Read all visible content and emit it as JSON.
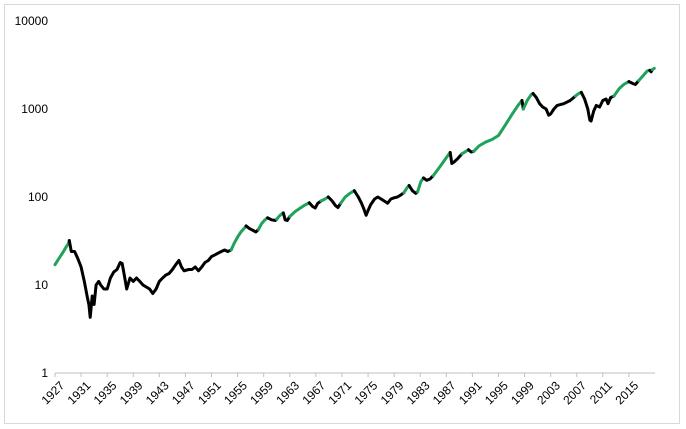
{
  "colors": {
    "bull": "#1fa25a",
    "other": "#000000",
    "axis": "#bfbfbf",
    "frame": "#d9d9d9"
  },
  "chart_data": {
    "type": "line",
    "title": "",
    "xlabel": "",
    "ylabel": "",
    "yscale": "log",
    "ylim": [
      1,
      10000
    ],
    "xlim": [
      1927,
      2019
    ],
    "grid": false,
    "legend": "none",
    "x_tick_labels": [
      "1927",
      "1931",
      "1935",
      "1939",
      "1943",
      "1947",
      "1951",
      "1955",
      "1959",
      "1963",
      "1967",
      "1971",
      "1975",
      "1979",
      "1983",
      "1987",
      "1991",
      "1995",
      "1999",
      "2003",
      "2007",
      "2011",
      "2015"
    ],
    "y_tick_labels": [
      "1",
      "10",
      "100",
      "1000",
      "10000"
    ],
    "series": [
      {
        "style": "green",
        "points": [
          [
            1927.0,
            17
          ],
          [
            1927.6,
            20
          ],
          [
            1928.3,
            24
          ],
          [
            1928.7,
            27
          ],
          [
            1929.0,
            29
          ],
          [
            1929.2,
            32
          ]
        ]
      },
      {
        "style": "black",
        "points": [
          [
            1929.2,
            32
          ],
          [
            1929.5,
            24
          ],
          [
            1930.0,
            24
          ],
          [
            1930.5,
            20
          ],
          [
            1931.0,
            16
          ],
          [
            1931.5,
            11
          ],
          [
            1932.0,
            7
          ],
          [
            1932.2,
            6
          ],
          [
            1932.4,
            4.3
          ],
          [
            1932.7,
            7.5
          ],
          [
            1933.0,
            6
          ],
          [
            1933.3,
            10
          ],
          [
            1933.7,
            11
          ],
          [
            1934.0,
            10
          ],
          [
            1934.5,
            9
          ],
          [
            1935.0,
            9
          ],
          [
            1935.5,
            12
          ],
          [
            1936.0,
            14
          ],
          [
            1936.5,
            15
          ],
          [
            1937.0,
            18
          ],
          [
            1937.3,
            17.5
          ],
          [
            1937.7,
            12
          ],
          [
            1938.0,
            9
          ],
          [
            1938.5,
            12
          ],
          [
            1939.0,
            11
          ],
          [
            1939.5,
            12
          ],
          [
            1940.0,
            11
          ],
          [
            1940.5,
            10
          ],
          [
            1941.0,
            9.5
          ],
          [
            1941.5,
            9
          ],
          [
            1942.0,
            8
          ],
          [
            1942.5,
            9
          ],
          [
            1943.0,
            11
          ],
          [
            1943.5,
            12
          ],
          [
            1944.0,
            13
          ],
          [
            1944.5,
            13.5
          ],
          [
            1945.0,
            15
          ],
          [
            1945.5,
            17
          ],
          [
            1946.0,
            19
          ],
          [
            1946.4,
            16
          ],
          [
            1946.8,
            14.5
          ],
          [
            1947.5,
            15
          ],
          [
            1948.0,
            15
          ],
          [
            1948.5,
            16
          ],
          [
            1949.0,
            14.5
          ],
          [
            1949.5,
            16
          ],
          [
            1950.0,
            18
          ],
          [
            1950.5,
            19
          ],
          [
            1951.0,
            21
          ],
          [
            1951.5,
            22
          ],
          [
            1952.0,
            23
          ],
          [
            1952.5,
            24
          ],
          [
            1953.0,
            25
          ],
          [
            1953.5,
            24
          ],
          [
            1954.0,
            25
          ]
        ]
      },
      {
        "style": "green",
        "points": [
          [
            1954.0,
            25
          ],
          [
            1954.5,
            30
          ],
          [
            1955.0,
            35
          ],
          [
            1955.5,
            40
          ],
          [
            1956.0,
            44
          ],
          [
            1956.3,
            47
          ]
        ]
      },
      {
        "style": "black",
        "points": [
          [
            1956.3,
            47
          ],
          [
            1956.8,
            44
          ],
          [
            1957.3,
            42
          ],
          [
            1957.8,
            40
          ],
          [
            1958.2,
            43
          ]
        ]
      },
      {
        "style": "green",
        "points": [
          [
            1958.2,
            43
          ],
          [
            1958.7,
            50
          ],
          [
            1959.2,
            55
          ],
          [
            1959.6,
            58
          ]
        ]
      },
      {
        "style": "black",
        "points": [
          [
            1959.6,
            58
          ],
          [
            1960.2,
            55
          ],
          [
            1960.8,
            54
          ],
          [
            1961.0,
            56
          ]
        ]
      },
      {
        "style": "green",
        "points": [
          [
            1961.0,
            56
          ],
          [
            1961.5,
            62
          ],
          [
            1962.0,
            66
          ]
        ]
      },
      {
        "style": "black",
        "points": [
          [
            1962.0,
            66
          ],
          [
            1962.3,
            55
          ],
          [
            1962.6,
            54
          ],
          [
            1963.0,
            60
          ]
        ]
      },
      {
        "style": "green",
        "points": [
          [
            1963.0,
            60
          ],
          [
            1963.8,
            68
          ],
          [
            1964.5,
            74
          ],
          [
            1965.2,
            80
          ],
          [
            1966.0,
            86
          ]
        ]
      },
      {
        "style": "black",
        "points": [
          [
            1966.0,
            86
          ],
          [
            1966.5,
            78
          ],
          [
            1966.9,
            75
          ],
          [
            1967.3,
            85
          ],
          [
            1967.8,
            90
          ]
        ]
      },
      {
        "style": "green",
        "points": [
          [
            1967.8,
            90
          ],
          [
            1968.4,
            95
          ],
          [
            1968.9,
            100
          ]
        ]
      },
      {
        "style": "black",
        "points": [
          [
            1968.9,
            100
          ],
          [
            1969.5,
            90
          ],
          [
            1970.0,
            80
          ],
          [
            1970.4,
            76
          ],
          [
            1970.8,
            85
          ]
        ]
      },
      {
        "style": "green",
        "points": [
          [
            1970.8,
            85
          ],
          [
            1971.5,
            100
          ],
          [
            1972.2,
            110
          ],
          [
            1972.9,
            118
          ]
        ]
      },
      {
        "style": "black",
        "points": [
          [
            1972.9,
            118
          ],
          [
            1973.5,
            100
          ],
          [
            1974.0,
            85
          ],
          [
            1974.4,
            72
          ],
          [
            1974.7,
            62
          ],
          [
            1975.0,
            70
          ],
          [
            1975.4,
            82
          ],
          [
            1976.0,
            95
          ],
          [
            1976.5,
            100
          ],
          [
            1977.0,
            95
          ],
          [
            1977.5,
            90
          ],
          [
            1978.0,
            85
          ],
          [
            1978.5,
            95
          ],
          [
            1979.0,
            98
          ],
          [
            1979.5,
            100
          ],
          [
            1980.0,
            105
          ],
          [
            1980.5,
            112
          ]
        ]
      },
      {
        "style": "green",
        "points": [
          [
            1980.5,
            112
          ],
          [
            1981.0,
            128
          ],
          [
            1981.3,
            135
          ]
        ]
      },
      {
        "style": "black",
        "points": [
          [
            1981.3,
            135
          ],
          [
            1981.8,
            118
          ],
          [
            1982.3,
            110
          ],
          [
            1982.6,
            115
          ]
        ]
      },
      {
        "style": "green",
        "points": [
          [
            1982.6,
            115
          ],
          [
            1983.1,
            150
          ],
          [
            1983.5,
            165
          ]
        ]
      },
      {
        "style": "black",
        "points": [
          [
            1983.5,
            165
          ],
          [
            1984.0,
            155
          ],
          [
            1984.5,
            160
          ],
          [
            1985.0,
            175
          ]
        ]
      },
      {
        "style": "green",
        "points": [
          [
            1985.0,
            175
          ],
          [
            1986.0,
            220
          ],
          [
            1987.0,
            280
          ],
          [
            1987.6,
            320
          ]
        ]
      },
      {
        "style": "black",
        "points": [
          [
            1987.6,
            320
          ],
          [
            1987.85,
            240
          ],
          [
            1988.2,
            250
          ],
          [
            1988.8,
            275
          ],
          [
            1989.4,
            310
          ]
        ]
      },
      {
        "style": "green",
        "points": [
          [
            1989.4,
            310
          ],
          [
            1990.0,
            330
          ],
          [
            1990.4,
            345
          ]
        ]
      },
      {
        "style": "black",
        "points": [
          [
            1990.4,
            345
          ],
          [
            1990.8,
            325
          ],
          [
            1991.2,
            330
          ]
        ]
      },
      {
        "style": "green",
        "points": [
          [
            1991.2,
            330
          ],
          [
            1992.0,
            380
          ],
          [
            1993.0,
            420
          ],
          [
            1994.0,
            450
          ],
          [
            1995.0,
            500
          ],
          [
            1996.0,
            650
          ],
          [
            1997.0,
            850
          ],
          [
            1998.0,
            1100
          ],
          [
            1998.6,
            1250
          ]
        ]
      },
      {
        "style": "black",
        "points": [
          [
            1998.6,
            1250
          ],
          [
            1998.8,
            1000
          ]
        ]
      },
      {
        "style": "green",
        "points": [
          [
            1998.8,
            1000
          ],
          [
            1999.4,
            1250
          ],
          [
            2000.0,
            1450
          ],
          [
            2000.3,
            1500
          ]
        ]
      },
      {
        "style": "black",
        "points": [
          [
            2000.3,
            1500
          ],
          [
            2000.8,
            1350
          ],
          [
            2001.3,
            1150
          ],
          [
            2001.8,
            1050
          ],
          [
            2002.3,
            1000
          ],
          [
            2002.7,
            850
          ],
          [
            2003.0,
            880
          ],
          [
            2003.5,
            1000
          ],
          [
            2004.0,
            1100
          ],
          [
            2005.0,
            1150
          ],
          [
            2006.0,
            1250
          ],
          [
            2006.8,
            1400
          ]
        ]
      },
      {
        "style": "green",
        "points": [
          [
            2006.8,
            1400
          ],
          [
            2007.3,
            1500
          ],
          [
            2007.7,
            1550
          ]
        ]
      },
      {
        "style": "black",
        "points": [
          [
            2007.7,
            1550
          ],
          [
            2008.2,
            1300
          ],
          [
            2008.7,
            1000
          ],
          [
            2009.0,
            750
          ],
          [
            2009.2,
            730
          ],
          [
            2009.6,
            950
          ],
          [
            2010.0,
            1100
          ],
          [
            2010.5,
            1050
          ],
          [
            2011.0,
            1250
          ],
          [
            2011.5,
            1300
          ],
          [
            2011.8,
            1150
          ],
          [
            2012.2,
            1350
          ],
          [
            2012.7,
            1400
          ]
        ]
      },
      {
        "style": "green",
        "points": [
          [
            2012.7,
            1400
          ],
          [
            2013.5,
            1700
          ],
          [
            2014.2,
            1900
          ],
          [
            2015.0,
            2050
          ]
        ]
      },
      {
        "style": "black",
        "points": [
          [
            2015.0,
            2050
          ],
          [
            2015.6,
            1950
          ],
          [
            2016.0,
            1900
          ],
          [
            2016.5,
            2100
          ]
        ]
      },
      {
        "style": "green",
        "points": [
          [
            2016.5,
            2100
          ],
          [
            2017.2,
            2400
          ],
          [
            2017.8,
            2700
          ],
          [
            2018.2,
            2750
          ]
        ]
      },
      {
        "style": "black",
        "points": [
          [
            2018.2,
            2750
          ],
          [
            2018.4,
            2650
          ],
          [
            2018.6,
            2800
          ]
        ]
      },
      {
        "style": "green",
        "points": [
          [
            2018.6,
            2800
          ],
          [
            2018.9,
            2900
          ]
        ]
      }
    ]
  }
}
